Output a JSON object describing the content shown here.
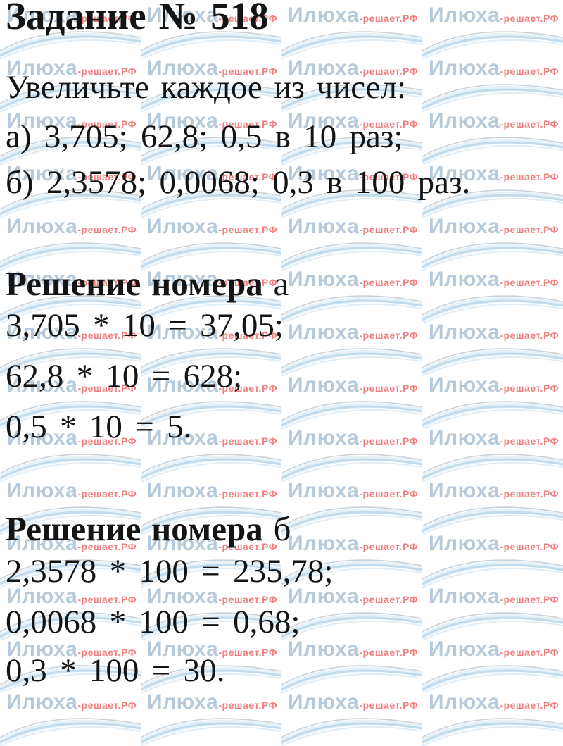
{
  "page": {
    "title": "Задание № 518",
    "problem": {
      "intro": "Увеличьте каждое из чисел:",
      "item_a": "а) 3,705; 62,8; 0,5 в 10 раз;",
      "item_b": "б) 2,3578; 0,0068; 0,3 в 100 раз."
    },
    "solution_a": {
      "heading_bold": "Решение номера",
      "heading_suffix": " а",
      "lines": [
        "3,705 * 10 = 37,05;",
        "62,8 * 10 = 628;",
        "0,5 * 10 = 5."
      ]
    },
    "solution_b": {
      "heading_bold": "Решение номера",
      "heading_suffix": " б",
      "lines": [
        "2,3578 * 100 = 235,78;",
        "0,0068 * 100 = 0,68;",
        "0,3 * 100 = 30."
      ]
    }
  },
  "watermark": {
    "brand": "Илюха",
    "suffix": "-решает.РФ",
    "brand_color": "#b7cadb",
    "suffix_color": "#f28080",
    "wave_gray_color": "#c6cfd7",
    "wave_blue_color": "#bcd8ec",
    "wave_light_color": "#e0edf6"
  }
}
